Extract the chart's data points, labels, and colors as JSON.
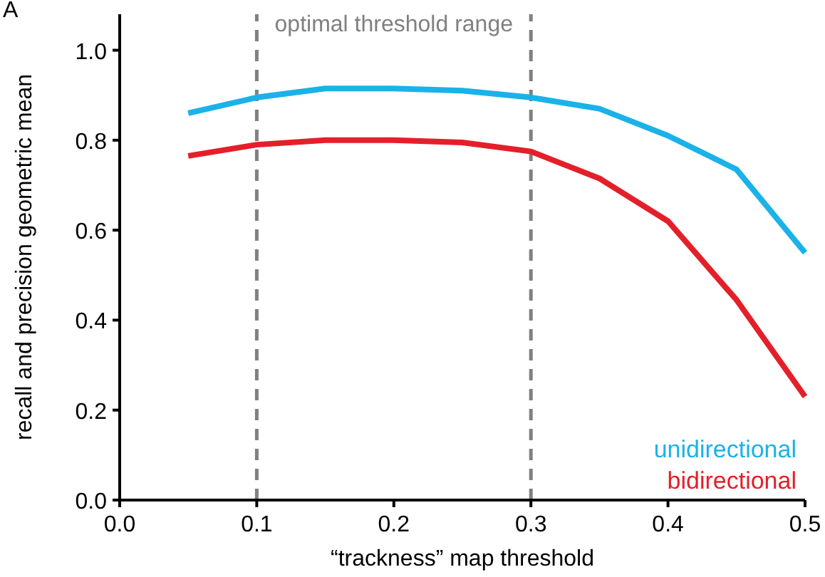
{
  "chart_data": {
    "type": "line",
    "xlabel": "“trackness” map threshold",
    "ylabel": "recall and precision geometric mean",
    "x": [
      0.05,
      0.1,
      0.15,
      0.2,
      0.25,
      0.3,
      0.35,
      0.4,
      0.45,
      0.5
    ],
    "series": [
      {
        "name": "unidirectional",
        "color": "#1ab2e8",
        "values": [
          0.86,
          0.895,
          0.915,
          0.915,
          0.91,
          0.895,
          0.87,
          0.81,
          0.735,
          0.55
        ]
      },
      {
        "name": "bidirectional",
        "color": "#e3202a",
        "values": [
          0.765,
          0.79,
          0.8,
          0.8,
          0.795,
          0.775,
          0.715,
          0.62,
          0.445,
          0.23
        ]
      }
    ],
    "xlim": [
      0,
      0.5
    ],
    "ylim": [
      0,
      1.08
    ],
    "xticks": [
      {
        "value": 0,
        "label": "0.0"
      },
      0.1,
      0.2,
      0.3,
      0.4,
      0.5
    ],
    "yticks": [
      {
        "value": 0,
        "label": "0.0"
      },
      0.2,
      0.4,
      0.6,
      0.8,
      {
        "value": 1,
        "label": "1.0"
      }
    ],
    "ref_lines": [
      {
        "axis": "x",
        "value": 0.1,
        "color": "#808080",
        "line_style": "dashed"
      },
      {
        "axis": "x",
        "value": 0.3,
        "color": "#808080",
        "line_style": "dashed"
      }
    ],
    "annotations": [
      "A",
      "optimal threshold range"
    ],
    "legend": "bottom right",
    "grid": false,
    "marker": "none",
    "line_style": "solid"
  }
}
